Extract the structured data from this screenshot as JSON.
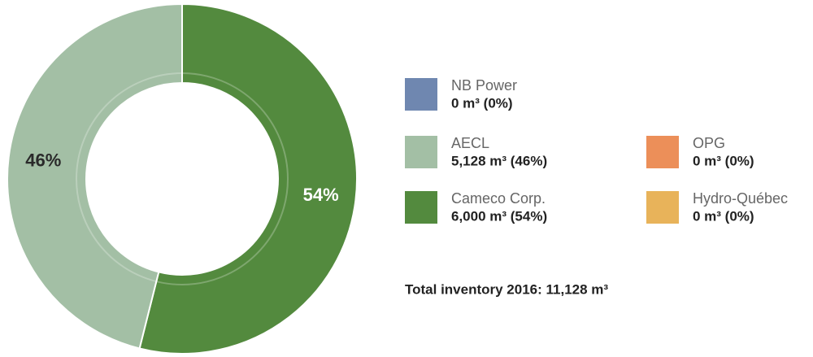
{
  "chart_data": {
    "type": "donut",
    "categories": [
      "NB Power",
      "AECL",
      "Cameco Corp.",
      "OPG",
      "Hydro-Québec"
    ],
    "values": [
      0,
      5128,
      6000,
      0,
      0
    ],
    "value_labels": [
      "0 m³ (0%)",
      "5,128 m³ (46%)",
      "6,000 m³ (54%)",
      "0 m³ (0%)",
      "0 m³ (0%)"
    ],
    "percents": [
      0,
      46,
      54,
      0,
      0
    ],
    "percent_labels": [
      null,
      "46%",
      "54%",
      null,
      null
    ],
    "colors": [
      "#6f87b0",
      "#a3bfa5",
      "#538a3e",
      "#ec8f59",
      "#e8b35a"
    ],
    "total": "Total inventory 2016: 11,128 m³"
  }
}
